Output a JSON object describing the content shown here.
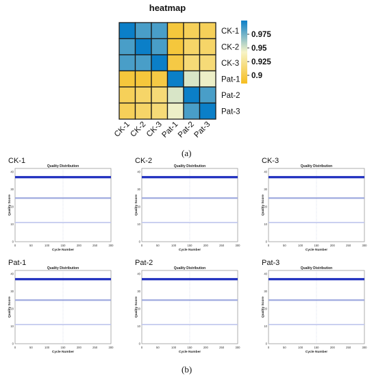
{
  "captions": {
    "a": "(a)",
    "b": "(b)"
  },
  "chart_data": [
    {
      "type": "heatmap",
      "title": "heatmap",
      "rows": [
        "CK-1",
        "CK-2",
        "CK-3",
        "Pat-1",
        "Pat-2",
        "Pat-3"
      ],
      "columns": [
        "CK-1",
        "CK-2",
        "CK-3",
        "Pat-1",
        "Pat-2",
        "Pat-3"
      ],
      "values": [
        [
          1.0,
          0.985,
          0.985,
          0.895,
          0.905,
          0.905
        ],
        [
          0.985,
          1.0,
          0.985,
          0.895,
          0.91,
          0.91
        ],
        [
          0.985,
          0.985,
          1.0,
          0.898,
          0.915,
          0.915
        ],
        [
          0.895,
          0.895,
          0.898,
          1.0,
          0.95,
          0.945
        ],
        [
          0.905,
          0.91,
          0.915,
          0.95,
          1.0,
          0.985
        ],
        [
          0.905,
          0.91,
          0.915,
          0.945,
          0.985,
          1.0
        ]
      ],
      "colorbar": {
        "ticks": [
          "0.975",
          "0.95",
          "0.925",
          "0.9"
        ],
        "tick_values": [
          0.975,
          0.95,
          0.925,
          0.9
        ],
        "range": [
          0.885,
          1.0
        ]
      },
      "colors": {
        "low": "#f5bd1f",
        "mid": "#f7f4c7",
        "high": "#0b7fc8",
        "grid": "#1a1a1a"
      }
    },
    {
      "type": "line",
      "label": "CK-1",
      "title": "Quality Distribution",
      "xlabel": "Cycle Number",
      "ylabel": "Quality Score",
      "x_ticks": [
        "0",
        "50",
        "100",
        "150",
        "200",
        "250",
        "300"
      ],
      "y_ticks": [
        "0",
        "10",
        "20",
        "30",
        "40"
      ],
      "xlim": [
        0,
        300
      ],
      "ylim": [
        0,
        42
      ],
      "series": [
        {
          "values_y": 37,
          "color": "#1f2fbf",
          "weight": "heavy"
        },
        {
          "values_y": 25,
          "color": "#9aa6dd",
          "weight": "medium"
        },
        {
          "values_y": 11,
          "color": "#c2c9ee",
          "weight": "light"
        }
      ]
    },
    {
      "type": "line",
      "label": "CK-2",
      "title": "Quality Distribution",
      "xlabel": "Cycle Number",
      "ylabel": "Quality Score",
      "x_ticks": [
        "0",
        "50",
        "100",
        "150",
        "200",
        "250",
        "300"
      ],
      "y_ticks": [
        "0",
        "10",
        "20",
        "30",
        "40"
      ],
      "xlim": [
        0,
        300
      ],
      "ylim": [
        0,
        42
      ],
      "series": [
        {
          "values_y": 37,
          "color": "#1f2fbf",
          "weight": "heavy"
        },
        {
          "values_y": 25,
          "color": "#9aa6dd",
          "weight": "medium"
        },
        {
          "values_y": 11,
          "color": "#c2c9ee",
          "weight": "light"
        }
      ]
    },
    {
      "type": "line",
      "label": "CK-3",
      "title": "Quality Distribution",
      "xlabel": "Cycle Number",
      "ylabel": "Quality Score",
      "x_ticks": [
        "0",
        "50",
        "100",
        "150",
        "200",
        "250",
        "300"
      ],
      "y_ticks": [
        "0",
        "10",
        "20",
        "30",
        "40"
      ],
      "xlim": [
        0,
        300
      ],
      "ylim": [
        0,
        42
      ],
      "series": [
        {
          "values_y": 37,
          "color": "#1f2fbf",
          "weight": "heavy"
        },
        {
          "values_y": 25,
          "color": "#9aa6dd",
          "weight": "medium"
        },
        {
          "values_y": 11,
          "color": "#c2c9ee",
          "weight": "light"
        }
      ]
    },
    {
      "type": "line",
      "label": "Pat-1",
      "title": "Quality Distribution",
      "xlabel": "Cycle Number",
      "ylabel": "Quality Score",
      "x_ticks": [
        "0",
        "50",
        "100",
        "150",
        "200",
        "250",
        "300"
      ],
      "y_ticks": [
        "0",
        "10",
        "20",
        "30",
        "40"
      ],
      "xlim": [
        0,
        300
      ],
      "ylim": [
        0,
        42
      ],
      "series": [
        {
          "values_y": 37,
          "color": "#1f2fbf",
          "weight": "heavy"
        },
        {
          "values_y": 25,
          "color": "#9aa6dd",
          "weight": "medium"
        },
        {
          "values_y": 11,
          "color": "#c2c9ee",
          "weight": "light"
        }
      ]
    },
    {
      "type": "line",
      "label": "Pat-2",
      "title": "Quality Distribution",
      "xlabel": "Cycle Number",
      "ylabel": "Quality Score",
      "x_ticks": [
        "0",
        "50",
        "100",
        "150",
        "200",
        "250",
        "300"
      ],
      "y_ticks": [
        "0",
        "10",
        "20",
        "30",
        "40"
      ],
      "xlim": [
        0,
        300
      ],
      "ylim": [
        0,
        42
      ],
      "series": [
        {
          "values_y": 37,
          "color": "#1f2fbf",
          "weight": "heavy"
        },
        {
          "values_y": 25,
          "color": "#9aa6dd",
          "weight": "medium"
        },
        {
          "values_y": 11,
          "color": "#c2c9ee",
          "weight": "light"
        }
      ]
    },
    {
      "type": "line",
      "label": "Pat-3",
      "title": "Quality Distribution",
      "xlabel": "Cycle Number",
      "ylabel": "Quality Score",
      "x_ticks": [
        "0",
        "50",
        "100",
        "150",
        "200",
        "250",
        "300"
      ],
      "y_ticks": [
        "0",
        "10",
        "20",
        "30",
        "40"
      ],
      "xlim": [
        0,
        300
      ],
      "ylim": [
        0,
        42
      ],
      "series": [
        {
          "values_y": 37,
          "color": "#1f2fbf",
          "weight": "heavy"
        },
        {
          "values_y": 25,
          "color": "#9aa6dd",
          "weight": "medium"
        },
        {
          "values_y": 11,
          "color": "#c2c9ee",
          "weight": "light"
        }
      ]
    }
  ]
}
